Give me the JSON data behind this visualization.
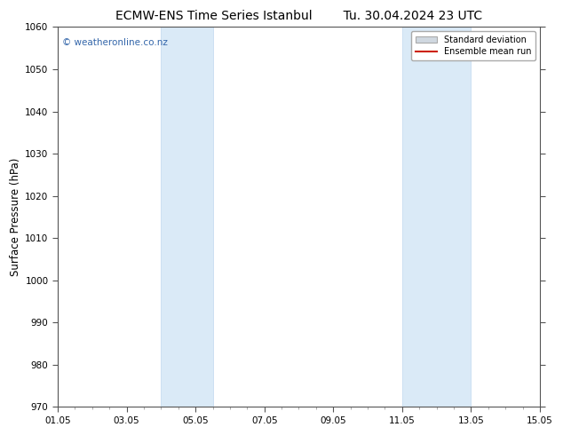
{
  "title_left": "ECMW-ENS Time Series Istanbul",
  "title_right": "Tu. 30.04.2024 23 UTC",
  "ylabel": "Surface Pressure (hPa)",
  "ylim": [
    970,
    1060
  ],
  "yticks": [
    970,
    980,
    990,
    1000,
    1010,
    1020,
    1030,
    1040,
    1050,
    1060
  ],
  "xlim_start": 0,
  "xlim_end": 14,
  "xtick_labels": [
    "01.05",
    "03.05",
    "05.05",
    "07.05",
    "09.05",
    "11.05",
    "13.05",
    "15.05"
  ],
  "xtick_positions": [
    0,
    2,
    4,
    6,
    8,
    10,
    12,
    14
  ],
  "shaded_bands": [
    {
      "xmin": 3.0,
      "xmax": 4.5
    },
    {
      "xmin": 10.0,
      "xmax": 12.0
    }
  ],
  "shade_color": "#daeaf7",
  "shade_edge_color": "#c0d8ef",
  "watermark_text": "© weatheronline.co.nz",
  "watermark_color": "#3366aa",
  "legend_std_label": "Standard deviation",
  "legend_ens_label": "Ensemble mean run",
  "legend_std_color": "#d0d8e0",
  "legend_ens_color": "#cc2200",
  "background_color": "#ffffff",
  "axis_background": "#ffffff",
  "title_fontsize": 10,
  "tick_fontsize": 7.5,
  "ylabel_fontsize": 8.5,
  "watermark_fontsize": 7.5
}
